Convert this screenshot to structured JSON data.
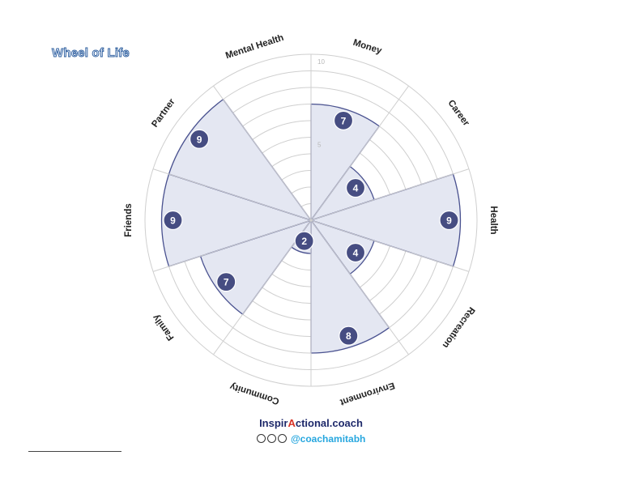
{
  "title": "Wheel of Life",
  "chart_data": {
    "type": "polar-area",
    "title": "Wheel of Life",
    "scale_max": 10,
    "ring_labels": [
      "5",
      "10"
    ],
    "categories": [
      "Money",
      "Career",
      "Health",
      "Recreation",
      "Environment",
      "Community",
      "Family",
      "Friends",
      "Partner",
      "Mental Health"
    ],
    "values": [
      7,
      4,
      9,
      4,
      8,
      2,
      7,
      9,
      9,
      0
    ]
  },
  "brand": {
    "name_prefix": "Inspir",
    "name_accent": "A",
    "name_suffix": "ctional.coach",
    "handle": "@coachamitabh",
    "icons": [
      "facebook-icon",
      "instagram-icon",
      "social-icon"
    ]
  },
  "colors": {
    "fill": "#e4e7f2",
    "stroke": "#4a5290",
    "badge": "#464d82",
    "grid": "#cfcfcf"
  }
}
